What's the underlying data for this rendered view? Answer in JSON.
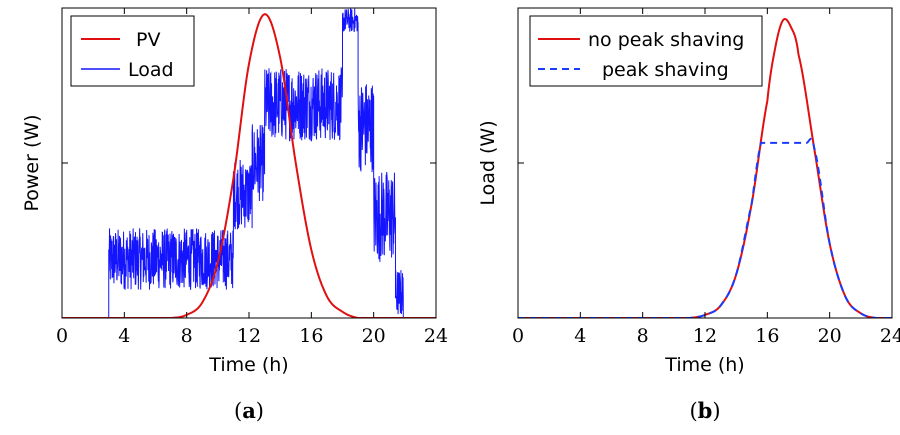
{
  "chart_data": [
    {
      "id": "a",
      "type": "line",
      "caption_label": "a",
      "xlabel": "Time (h)",
      "ylabel": "Power (W)",
      "xlim": [
        0,
        24
      ],
      "ylim": [
        0,
        1.0
      ],
      "x_ticks": [
        0,
        4,
        8,
        12,
        16,
        20,
        24
      ],
      "y_tick_labels_shown": false,
      "y_minor_ticks": [
        0.5
      ],
      "grid": false,
      "legend": "top-left",
      "series": [
        {
          "name": "PV",
          "color": "#e01010",
          "style": "solid",
          "points": [
            [
              0,
              0
            ],
            [
              7,
              0
            ],
            [
              8,
              0.01
            ],
            [
              9,
              0.05
            ],
            [
              10,
              0.18
            ],
            [
              11,
              0.45
            ],
            [
              12,
              0.82
            ],
            [
              13,
              0.98
            ],
            [
              14,
              0.84
            ],
            [
              15,
              0.5
            ],
            [
              16,
              0.22
            ],
            [
              17,
              0.07
            ],
            [
              18,
              0.02
            ],
            [
              19,
              0
            ],
            [
              24,
              0
            ]
          ]
        },
        {
          "name": "Load",
          "color": "#1414ff",
          "style": "solid",
          "noisy": true,
          "segments": [
            {
              "x": [
                0,
                3
              ],
              "level": 0,
              "band": 0
            },
            {
              "x": [
                3,
                11
              ],
              "level": 0.19,
              "band": 0.2
            },
            {
              "x": [
                11,
                12.2
              ],
              "level": 0.4,
              "band": 0.23
            },
            {
              "x": [
                12.2,
                13
              ],
              "level": 0.5,
              "band": 0.25
            },
            {
              "x": [
                13,
                18
              ],
              "level": 0.69,
              "band": 0.24
            },
            {
              "x": [
                18,
                19
              ],
              "level": 0.96,
              "band": 0.08
            },
            {
              "x": [
                19,
                20
              ],
              "level": 0.62,
              "band": 0.3
            },
            {
              "x": [
                20,
                21.4
              ],
              "level": 0.33,
              "band": 0.3
            },
            {
              "x": [
                21.4,
                21.9
              ],
              "level": 0.08,
              "band": 0.16
            },
            {
              "x": [
                21.9,
                24
              ],
              "level": 0,
              "band": 0
            }
          ]
        }
      ]
    },
    {
      "id": "b",
      "type": "line",
      "caption_label": "b",
      "xlabel": "Time (h)",
      "ylabel": "Load (W)",
      "xlim": [
        0,
        24
      ],
      "ylim": [
        0,
        1.0
      ],
      "x_ticks": [
        0,
        4,
        8,
        12,
        16,
        20,
        24
      ],
      "y_tick_labels_shown": false,
      "y_minor_ticks": [
        0.5
      ],
      "grid": false,
      "legend": "top-left",
      "series": [
        {
          "name": "no peak shaving",
          "color": "#e01010",
          "style": "solid",
          "points": [
            [
              0,
              0
            ],
            [
              11,
              0
            ],
            [
              12,
              0.01
            ],
            [
              13,
              0.04
            ],
            [
              14,
              0.14
            ],
            [
              15,
              0.37
            ],
            [
              16,
              0.7
            ],
            [
              16.5,
              0.87
            ],
            [
              17,
              0.96
            ],
            [
              17.5,
              0.94
            ],
            [
              18,
              0.85
            ],
            [
              19,
              0.55
            ],
            [
              20,
              0.24
            ],
            [
              21,
              0.07
            ],
            [
              22,
              0.015
            ],
            [
              23,
              0
            ],
            [
              24,
              0
            ]
          ]
        },
        {
          "name": "peak shaving",
          "color": "#1a3cff",
          "style": "dashed",
          "points": [
            [
              0,
              0
            ],
            [
              11,
              0
            ],
            [
              12,
              0.01
            ],
            [
              13,
              0.04
            ],
            [
              14,
              0.14
            ],
            [
              15,
              0.37
            ],
            [
              15.6,
              0.565
            ],
            [
              18.5,
              0.565
            ],
            [
              19,
              0.55
            ],
            [
              20,
              0.24
            ],
            [
              21,
              0.07
            ],
            [
              22,
              0.015
            ],
            [
              23,
              0
            ],
            [
              24,
              0
            ]
          ]
        }
      ]
    }
  ]
}
